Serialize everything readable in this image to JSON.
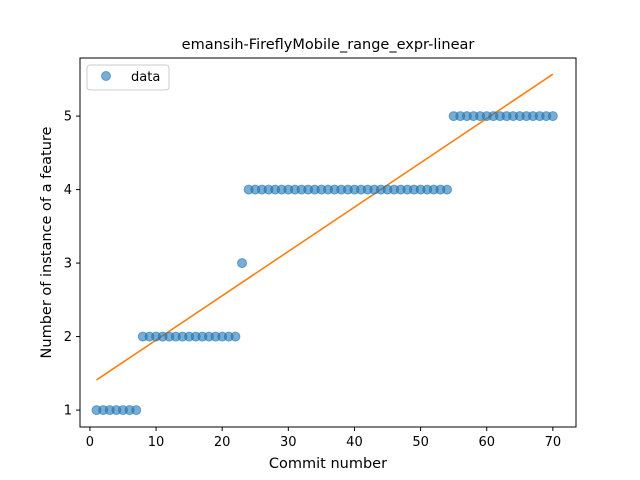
{
  "chart_data": {
    "type": "scatter",
    "title": "emansih-FireflyMobile_range_expr-linear",
    "xlabel": "Commit number",
    "ylabel": "Number of instance of a feature",
    "xlim": [
      -1.5,
      73.5
    ],
    "ylim": [
      0.77,
      5.79
    ],
    "xticks": [
      0,
      10,
      20,
      30,
      40,
      50,
      60,
      70
    ],
    "yticks": [
      1,
      2,
      3,
      4,
      5
    ],
    "grid": false,
    "legend_position": "top-left",
    "series": [
      {
        "name": "data",
        "kind": "scatter",
        "color": "#1f77b4",
        "x": [
          1,
          2,
          3,
          4,
          5,
          6,
          7,
          8,
          9,
          10,
          11,
          12,
          13,
          14,
          15,
          16,
          17,
          18,
          19,
          20,
          21,
          22,
          23,
          24,
          25,
          26,
          27,
          28,
          29,
          30,
          31,
          32,
          33,
          34,
          35,
          36,
          37,
          38,
          39,
          40,
          41,
          42,
          43,
          44,
          45,
          46,
          47,
          48,
          49,
          50,
          51,
          52,
          53,
          54,
          55,
          56,
          57,
          58,
          59,
          60,
          61,
          62,
          63,
          64,
          65,
          66,
          67,
          68,
          69,
          70
        ],
        "y": [
          1,
          1,
          1,
          1,
          1,
          1,
          1,
          2,
          2,
          2,
          2,
          2,
          2,
          2,
          2,
          2,
          2,
          2,
          2,
          2,
          2,
          2,
          3,
          4,
          4,
          4,
          4,
          4,
          4,
          4,
          4,
          4,
          4,
          4,
          4,
          4,
          4,
          4,
          4,
          4,
          4,
          4,
          4,
          4,
          4,
          4,
          4,
          4,
          4,
          4,
          4,
          4,
          4,
          4,
          5,
          5,
          5,
          5,
          5,
          5,
          5,
          5,
          5,
          5,
          5,
          5,
          5,
          5,
          5,
          5
        ]
      },
      {
        "kind": "line",
        "color": "#ff7f0e",
        "x": [
          1,
          70
        ],
        "y": [
          1.41,
          5.57
        ]
      }
    ]
  }
}
